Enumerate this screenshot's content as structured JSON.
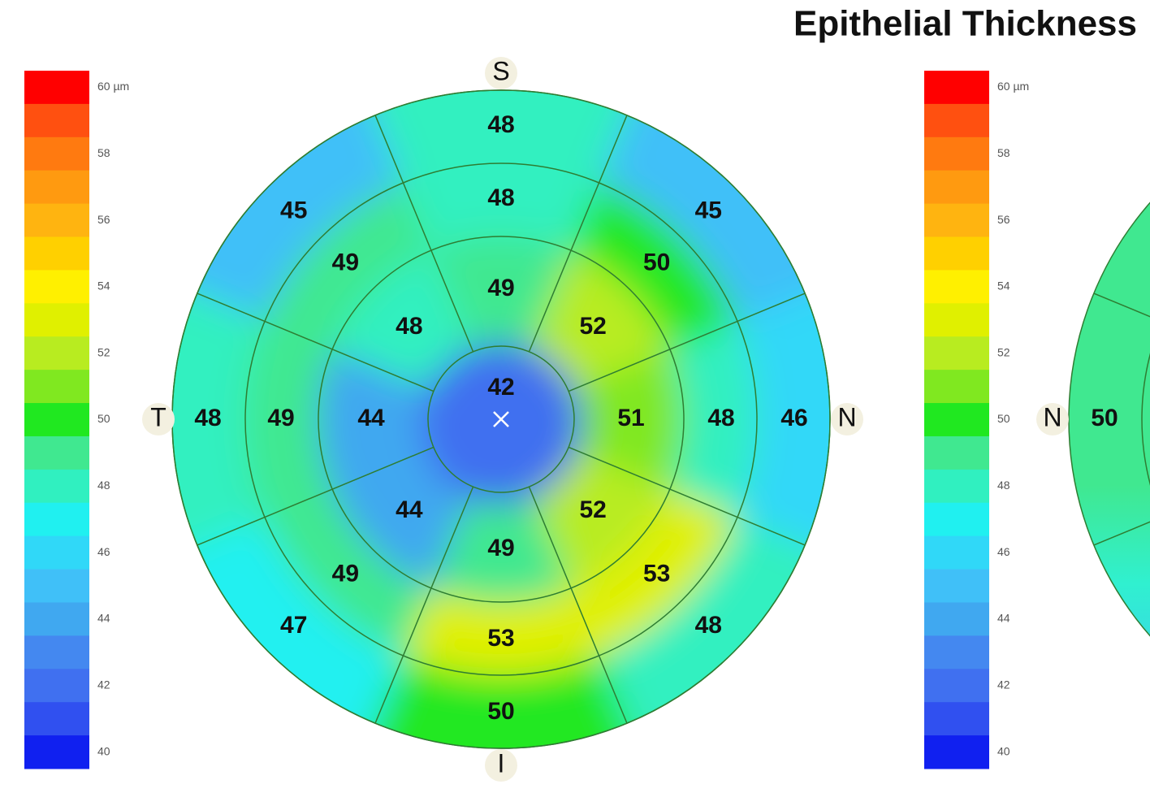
{
  "title": "Epithelial Thickness",
  "scale": {
    "ticks": [
      {
        "value": 60,
        "label": "60 µm"
      },
      58,
      56,
      54,
      52,
      50,
      48,
      46,
      44,
      42,
      40
    ],
    "colors": [
      "#ff0000",
      "#ff5010",
      "#ff7a10",
      "#ff9a10",
      "#ffb410",
      "#ffd000",
      "#fff000",
      "#e0f000",
      "#b8ec20",
      "#80e820",
      "#20e820",
      "#40e890",
      "#30f0c0",
      "#20f0f0",
      "#30d8f8",
      "#40c0f8",
      "#40a8f0",
      "#4488f0",
      "#4070f0",
      "#3050f0",
      "#1020f0"
    ]
  },
  "left_map": {
    "directions": {
      "S": "S",
      "N": "N",
      "I": "I",
      "T": "T"
    },
    "center": 42,
    "rings": [
      {
        "values": [
          49,
          52,
          51,
          52,
          49,
          44,
          44,
          48
        ]
      },
      {
        "values": [
          48,
          50,
          48,
          53,
          53,
          49,
          49,
          49
        ]
      },
      {
        "values": [
          48,
          45,
          46,
          48,
          50,
          47,
          48,
          45
        ]
      }
    ]
  },
  "right_map": {
    "direction": "N",
    "value": 50
  }
}
